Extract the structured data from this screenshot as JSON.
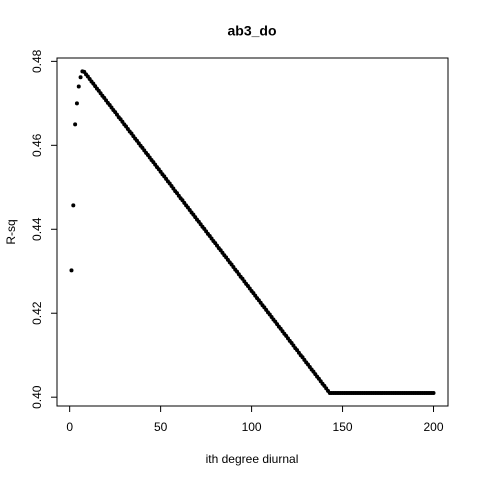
{
  "chart_data": {
    "type": "scatter",
    "title": "ab3_do",
    "xlabel": "ith degree diurnal",
    "ylabel": "R-sq",
    "color": "#000000",
    "xlim": [
      -6.96,
      207.96
    ],
    "ylim": [
      0.3979,
      0.4808
    ],
    "xticks": [
      0,
      50,
      100,
      150,
      200
    ],
    "yticks": [
      {
        "value": 0.4,
        "label": "0.40"
      },
      {
        "value": 0.42,
        "label": "0.42"
      },
      {
        "value": 0.44,
        "label": "0.44"
      },
      {
        "value": 0.46,
        "label": "0.46"
      },
      {
        "value": 0.48,
        "label": "0.48"
      }
    ],
    "x": [
      1,
      2,
      3,
      4,
      5,
      6,
      7,
      8,
      9,
      10,
      11,
      12,
      13,
      14,
      15,
      16,
      17,
      18,
      19,
      20,
      21,
      22,
      23,
      24,
      25,
      26,
      27,
      28,
      29,
      30,
      31,
      32,
      33,
      34,
      35,
      36,
      37,
      38,
      39,
      40,
      41,
      42,
      43,
      44,
      45,
      46,
      47,
      48,
      49,
      50,
      51,
      52,
      53,
      54,
      55,
      56,
      57,
      58,
      59,
      60,
      61,
      62,
      63,
      64,
      65,
      66,
      67,
      68,
      69,
      70,
      71,
      72,
      73,
      74,
      75,
      76,
      77,
      78,
      79,
      80,
      81,
      82,
      83,
      84,
      85,
      86,
      87,
      88,
      89,
      90,
      91,
      92,
      93,
      94,
      95,
      96,
      97,
      98,
      99,
      100,
      101,
      102,
      103,
      104,
      105,
      106,
      107,
      108,
      109,
      110,
      111,
      112,
      113,
      114,
      115,
      116,
      117,
      118,
      119,
      120,
      121,
      122,
      123,
      124,
      125,
      126,
      127,
      128,
      129,
      130,
      131,
      132,
      133,
      134,
      135,
      136,
      137,
      138,
      139,
      140,
      141,
      142,
      143,
      144,
      145,
      146,
      147,
      148,
      149,
      150,
      151,
      152,
      153,
      154,
      155,
      156,
      157,
      158,
      159,
      160,
      161,
      162,
      163,
      164,
      165,
      166,
      167,
      168,
      169,
      170,
      171,
      172,
      173,
      174,
      175,
      176,
      177,
      178,
      179,
      180,
      181,
      182,
      183,
      184,
      185,
      186,
      187,
      188,
      189,
      190,
      191,
      192,
      193,
      194,
      195,
      196,
      197,
      198,
      199,
      200
    ],
    "values": [
      0.4302,
      0.4457,
      0.465,
      0.47,
      0.474,
      0.4762,
      0.4776,
      0.4775,
      0.4769,
      0.4764,
      0.4758,
      0.4752,
      0.4747,
      0.4741,
      0.4735,
      0.473,
      0.4724,
      0.4718,
      0.4713,
      0.4707,
      0.4701,
      0.4696,
      0.469,
      0.4684,
      0.4679,
      0.4673,
      0.4667,
      0.4662,
      0.4656,
      0.465,
      0.4645,
      0.4639,
      0.4633,
      0.4628,
      0.4622,
      0.4616,
      0.4611,
      0.4605,
      0.4599,
      0.4594,
      0.4588,
      0.4582,
      0.4577,
      0.4571,
      0.4565,
      0.456,
      0.4554,
      0.4548,
      0.4543,
      0.4537,
      0.4531,
      0.4526,
      0.452,
      0.4514,
      0.4509,
      0.4503,
      0.4497,
      0.4491,
      0.4486,
      0.448,
      0.4474,
      0.4469,
      0.4463,
      0.4457,
      0.4452,
      0.4446,
      0.444,
      0.4435,
      0.4429,
      0.4423,
      0.4418,
      0.4412,
      0.4406,
      0.4401,
      0.4395,
      0.4389,
      0.4384,
      0.4378,
      0.4372,
      0.4367,
      0.4361,
      0.4355,
      0.435,
      0.4344,
      0.4338,
      0.4333,
      0.4327,
      0.4321,
      0.4316,
      0.431,
      0.4304,
      0.4299,
      0.4293,
      0.4287,
      0.4282,
      0.4276,
      0.427,
      0.4265,
      0.4259,
      0.4253,
      0.4248,
      0.4242,
      0.4236,
      0.4231,
      0.4225,
      0.4219,
      0.4214,
      0.4208,
      0.4202,
      0.4197,
      0.4191,
      0.4185,
      0.418,
      0.4174,
      0.4168,
      0.4163,
      0.4157,
      0.4151,
      0.4146,
      0.414,
      0.4134,
      0.4129,
      0.4123,
      0.4117,
      0.4112,
      0.4106,
      0.41,
      0.4095,
      0.4089,
      0.4083,
      0.4078,
      0.4072,
      0.4066,
      0.4061,
      0.4055,
      0.4049,
      0.4044,
      0.4038,
      0.4032,
      0.4027,
      0.4021,
      0.4015,
      0.401,
      0.401,
      0.401,
      0.401,
      0.401,
      0.401,
      0.401,
      0.401,
      0.401,
      0.401,
      0.401,
      0.401,
      0.401,
      0.401,
      0.401,
      0.401,
      0.401,
      0.401,
      0.401,
      0.401,
      0.401,
      0.401,
      0.401,
      0.401,
      0.401,
      0.401,
      0.401,
      0.401,
      0.401,
      0.401,
      0.401,
      0.401,
      0.401,
      0.401,
      0.401,
      0.401,
      0.401,
      0.401,
      0.401,
      0.401,
      0.401,
      0.401,
      0.401,
      0.401,
      0.401,
      0.401,
      0.401,
      0.401,
      0.401,
      0.401,
      0.401,
      0.401,
      0.401,
      0.401,
      0.401,
      0.401,
      0.401,
      0.401
    ]
  }
}
